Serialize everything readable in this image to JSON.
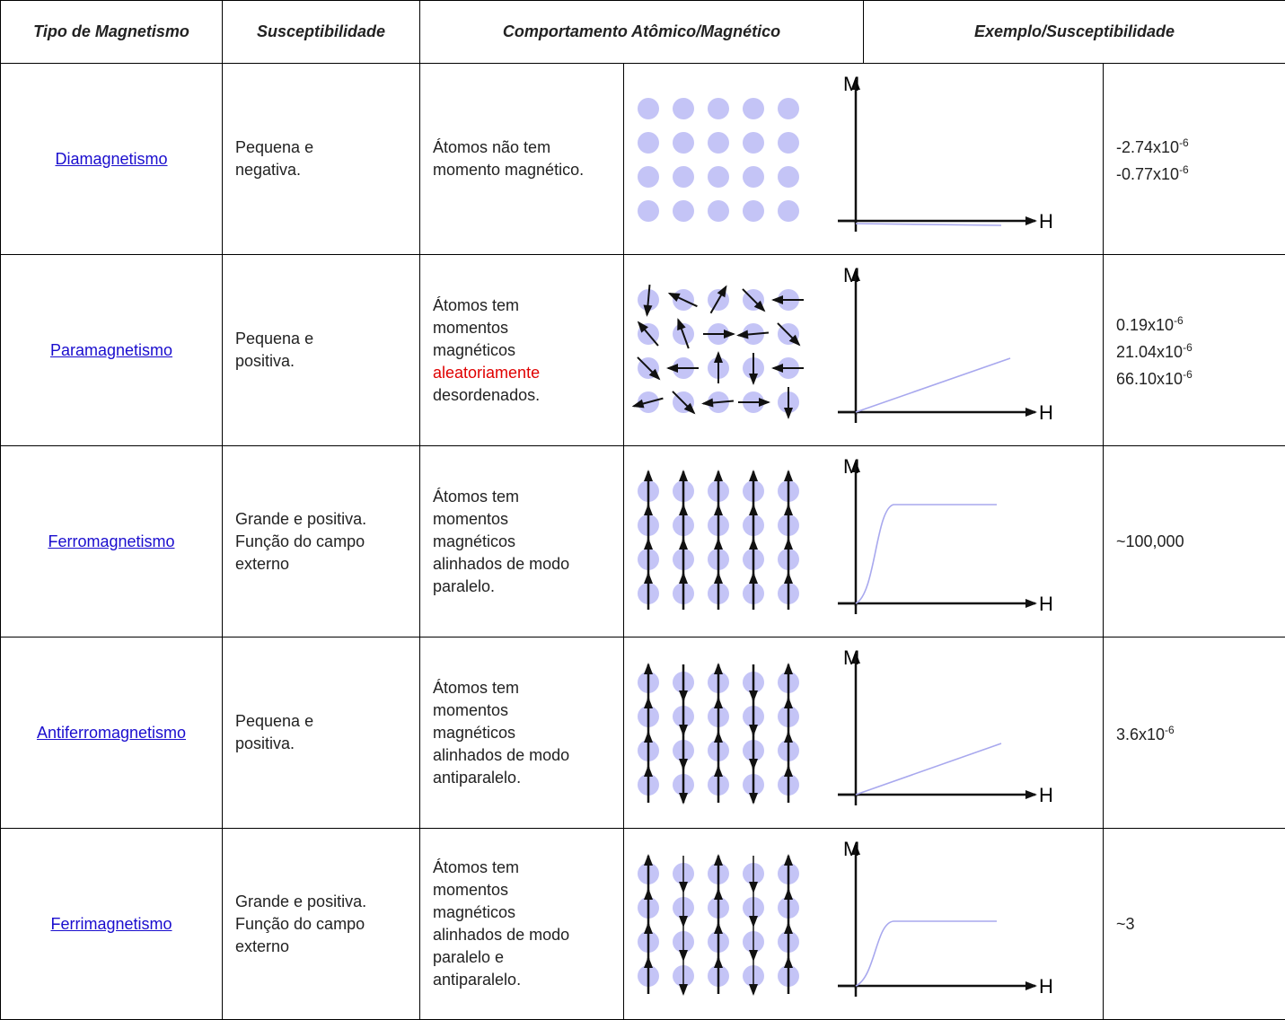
{
  "header": [
    "Tipo de Magnetismo",
    "Susceptibilidade",
    "Comportamento Atômico/Magnético",
    "Exemplo/Susceptibilidade"
  ],
  "graph_labels": {
    "y": "M",
    "x": "H"
  },
  "rows": [
    {
      "type": "Diamagnetismo",
      "susceptibility": [
        "Pequena e",
        "negativa."
      ],
      "behavior": [
        "Átomos não tem",
        "momento magnético."
      ],
      "examples": [
        {
          "base": "-2.74x10",
          "exp": "-6"
        },
        {
          "base": "-0.77x10",
          "exp": "-6"
        }
      ]
    },
    {
      "type": "Paramagnetismo",
      "susceptibility": [
        "Pequena e",
        "positiva."
      ],
      "behavior": [
        "Átomos tem",
        "momentos",
        "magnéticos",
        {
          "text": "aleatoriamente",
          "color": "#e00000"
        },
        "desordenados."
      ],
      "examples": [
        {
          "base": "0.19x10",
          "exp": "-6"
        },
        {
          "base": "21.04x10",
          "exp": "-6"
        },
        {
          "base": "66.10x10",
          "exp": "-6"
        }
      ]
    },
    {
      "type": "Ferromagnetismo",
      "susceptibility": [
        "Grande e positiva.",
        "Função do campo",
        "externo"
      ],
      "behavior": [
        "Átomos tem",
        "momentos",
        "magnéticos",
        "alinhados  de modo",
        "paralelo."
      ],
      "examples": [
        {
          "base": "~100,000"
        }
      ]
    },
    {
      "type": "Antiferromagnetismo",
      "susceptibility": [
        "Pequena e",
        "positiva."
      ],
      "behavior": [
        "Átomos tem",
        "momentos",
        "magnéticos",
        "alinhados  de modo",
        "antiparalelo."
      ],
      "examples": [
        {
          "base": "3.6x10",
          "exp": "-6"
        }
      ]
    },
    {
      "type": "Ferrimagnetismo",
      "susceptibility": [
        "Grande e positiva.",
        "Função do campo",
        "externo"
      ],
      "behavior": [
        "Átomos tem",
        "momentos",
        "magnéticos",
        "alinhados  de modo",
        "paralelo e",
        "antiparalelo."
      ],
      "examples": [
        {
          "base": "~3"
        }
      ]
    }
  ]
}
